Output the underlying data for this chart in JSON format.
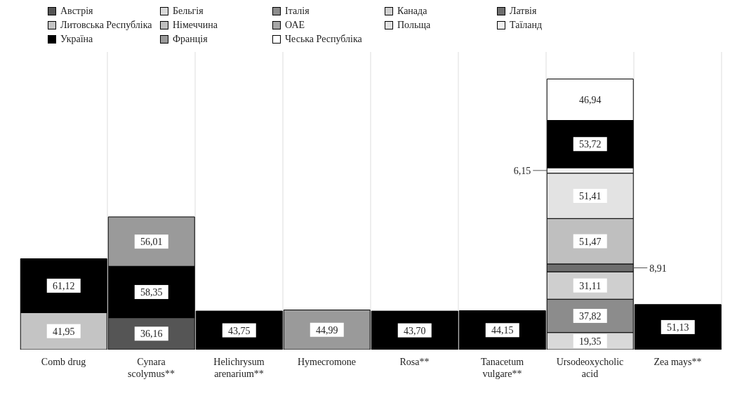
{
  "chart_data": {
    "type": "bar",
    "stacked": true,
    "legend": "top",
    "grid": "x",
    "categories": [
      "Comb drug",
      "Cynara scolymus**",
      "Helichrysum arenarium**",
      "Hymecromone",
      "Rosa**",
      "Tanacetum vulgare**",
      "Ursodeoxycholic acid",
      "Zea mays**"
    ],
    "series": [
      {
        "name": "Австрія",
        "color": "#555555",
        "values": [
          null,
          36.16,
          null,
          null,
          null,
          null,
          null,
          null
        ],
        "value_labels": [
          null,
          "36,16",
          null,
          null,
          null,
          null,
          null,
          null
        ]
      },
      {
        "name": "Бельгія",
        "color": "#d9d9d9",
        "values": [
          null,
          null,
          null,
          null,
          null,
          null,
          19.35,
          null
        ],
        "value_labels": [
          null,
          null,
          null,
          null,
          null,
          null,
          "19,35",
          null
        ]
      },
      {
        "name": "Італія",
        "color": "#8c8c8c",
        "values": [
          null,
          null,
          null,
          null,
          null,
          null,
          37.82,
          null
        ],
        "value_labels": [
          null,
          null,
          null,
          null,
          null,
          null,
          "37,82",
          null
        ]
      },
      {
        "name": "Канада",
        "color": "#cfcfcf",
        "values": [
          null,
          null,
          null,
          null,
          null,
          null,
          31.11,
          null
        ],
        "value_labels": [
          null,
          null,
          null,
          null,
          null,
          null,
          "31,11",
          null
        ]
      },
      {
        "name": "Латвія",
        "color": "#6e6e6e",
        "values": [
          null,
          null,
          null,
          null,
          null,
          null,
          8.91,
          null
        ],
        "value_labels": [
          null,
          null,
          null,
          null,
          null,
          null,
          "8,91",
          null
        ]
      },
      {
        "name": "Литовська Республіка",
        "color": "#c4c4c4",
        "values": [
          41.95,
          null,
          null,
          null,
          null,
          null,
          null,
          null
        ],
        "value_labels": [
          "41,95",
          null,
          null,
          null,
          null,
          null,
          null,
          null
        ]
      },
      {
        "name": "Німеччина",
        "color": "#bfbfbf",
        "values": [
          null,
          null,
          null,
          null,
          null,
          null,
          51.47,
          null
        ],
        "value_labels": [
          null,
          null,
          null,
          null,
          null,
          null,
          "51,47",
          null
        ]
      },
      {
        "name": "ОАЕ",
        "color": "#a6a6a6",
        "values": [
          null,
          null,
          null,
          null,
          null,
          null,
          null,
          null
        ]
      },
      {
        "name": "Польща",
        "color": "#e3e3e3",
        "values": [
          null,
          null,
          null,
          null,
          null,
          null,
          51.41,
          null
        ],
        "value_labels": [
          null,
          null,
          null,
          null,
          null,
          null,
          "51,41",
          null
        ]
      },
      {
        "name": "Таїланд",
        "color": "#f2f2f2",
        "values": [
          null,
          null,
          null,
          null,
          null,
          null,
          6.15,
          null
        ],
        "value_labels": [
          null,
          null,
          null,
          null,
          null,
          null,
          "6,15",
          null
        ]
      },
      {
        "name": "Україна",
        "color": "#000000",
        "values": [
          61.12,
          58.35,
          43.75,
          null,
          43.7,
          44.15,
          53.72,
          51.13
        ],
        "value_labels": [
          "61,12",
          "58,35",
          "43,75",
          null,
          "43,70",
          "44,15",
          "53,72",
          "51,13"
        ]
      },
      {
        "name": "Франція",
        "color": "#9a9a9a",
        "values": [
          null,
          56.01,
          null,
          44.99,
          null,
          null,
          null,
          null
        ],
        "value_labels": [
          null,
          "56,01",
          null,
          "44,99",
          null,
          null,
          null,
          null
        ]
      },
      {
        "name": "Чеська Республіка",
        "color": "#ffffff",
        "values": [
          null,
          null,
          null,
          null,
          null,
          null,
          46.94,
          null
        ],
        "value_labels": [
          null,
          null,
          null,
          null,
          null,
          null,
          "46,94",
          null
        ]
      }
    ]
  }
}
